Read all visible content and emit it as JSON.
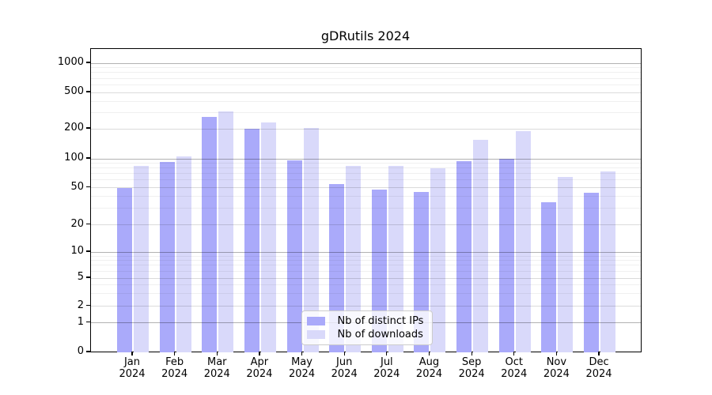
{
  "title": "gDRutils 2024",
  "colors": {
    "distinct_ips": "#aaaafa",
    "downloads": "#d9d9fa",
    "axis": "#000000",
    "grid_decade": "rgba(0,0,0,0.30)",
    "grid_labeled": "rgba(0,0,0,0.14)",
    "grid_minor": "rgba(0,0,0,0.06)"
  },
  "legend": {
    "items": [
      {
        "label": "Nb of distinct IPs",
        "series_key": "distinct_ips"
      },
      {
        "label": "Nb of downloads",
        "series_key": "downloads"
      }
    ]
  },
  "x_axis": {
    "year": "2024",
    "months": [
      "Jan",
      "Feb",
      "Mar",
      "Apr",
      "May",
      "Jun",
      "Jul",
      "Aug",
      "Sep",
      "Oct",
      "Nov",
      "Dec"
    ]
  },
  "y_axis": {
    "tick_values": [
      0,
      1,
      2,
      5,
      10,
      20,
      50,
      100,
      200,
      500,
      1000
    ],
    "tick_labels": [
      "0",
      "1",
      "2",
      "5",
      "10",
      "20",
      "50",
      "100",
      "200",
      "500",
      "1000"
    ],
    "decade_values": [
      1,
      10,
      100,
      1000
    ],
    "minor_values": [
      3,
      4,
      6,
      7,
      8,
      9,
      30,
      40,
      60,
      70,
      80,
      90,
      300,
      400,
      600,
      700,
      800,
      900
    ]
  },
  "chart_data": {
    "type": "bar",
    "title": "gDRutils 2024",
    "xlabel": "",
    "ylabel": "",
    "categories": [
      "Jan 2024",
      "Feb 2024",
      "Mar 2024",
      "Apr 2024",
      "May 2024",
      "Jun 2024",
      "Jul 2024",
      "Aug 2024",
      "Sep 2024",
      "Oct 2024",
      "Nov 2024",
      "Dec 2024"
    ],
    "series": [
      {
        "name": "Nb of distinct IPs",
        "values": [
          50,
          93,
          268,
          202,
          97,
          54,
          48,
          45,
          95,
          100,
          35,
          44
        ]
      },
      {
        "name": "Nb of downloads",
        "values": [
          84,
          106,
          310,
          235,
          205,
          84,
          84,
          80,
          155,
          190,
          65,
          74
        ]
      }
    ],
    "y_scale": "log-like",
    "yticks": [
      0,
      1,
      2,
      5,
      10,
      20,
      50,
      100,
      200,
      500,
      1000
    ],
    "grid": true,
    "legend_position": "lower center"
  }
}
